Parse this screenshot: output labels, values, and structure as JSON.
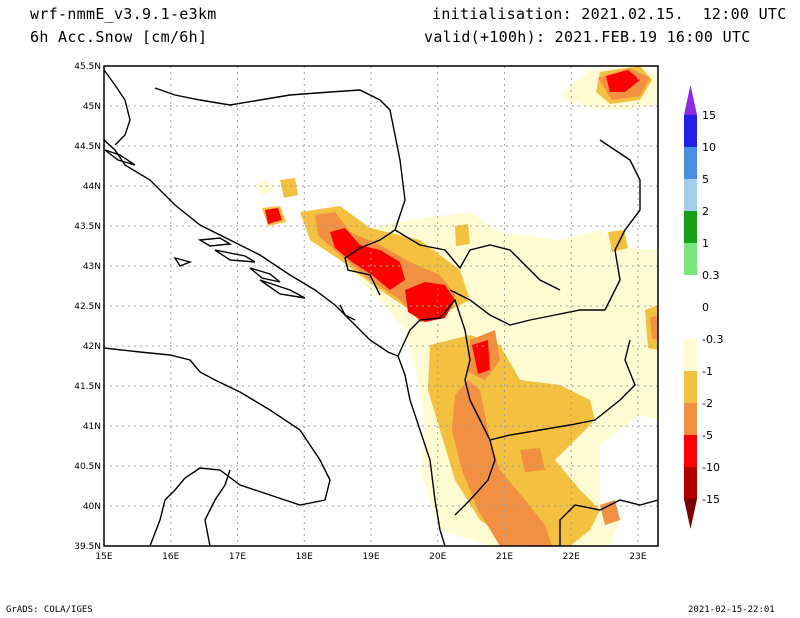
{
  "header": {
    "model": "wrf-nmmE_v3.9.1-e3km",
    "field": "6h Acc.Snow [cm/6h]",
    "init": "initialisation: 2021.02.15.  12:00 UTC",
    "valid": "valid(+100h): 2021.FEB.19 16:00 UTC"
  },
  "axes": {
    "lon_labels": [
      "15E",
      "16E",
      "17E",
      "18E",
      "19E",
      "20E",
      "21E",
      "22E",
      "23E"
    ],
    "lat_labels": [
      "39.5N",
      "40N",
      "40.5N",
      "41N",
      "41.5N",
      "42N",
      "42.5N",
      "43N",
      "43.5N",
      "44N",
      "44.5N",
      "45N",
      "45.5N"
    ],
    "lon_range": [
      15.0,
      23.3
    ],
    "lat_range": [
      39.5,
      45.5
    ]
  },
  "legend": {
    "labels": [
      "15",
      "10",
      "5",
      "2",
      "1",
      "0.3",
      "0",
      "-0.3",
      "-1",
      "-2",
      "-5",
      "-10",
      "-15"
    ],
    "bands": [
      {
        "color": "#2020e6"
      },
      {
        "color": "#4a8fe0"
      },
      {
        "color": "#a5cff2"
      },
      {
        "color": "#16a016"
      },
      {
        "color": "#78e678"
      },
      {
        "color": "#ffffff"
      },
      {
        "color": "#ffffff"
      },
      {
        "color": "#fffbd2"
      },
      {
        "color": "#f4c040"
      },
      {
        "color": "#f09040"
      },
      {
        "color": "#ff0000"
      },
      {
        "color": "#b00000"
      }
    ],
    "top_arrow_color": "#8a2be2",
    "bottom_arrow_color": "#7a0000"
  },
  "field_colors": {
    "very_light": "#fffbd2",
    "light": "#f4c040",
    "moderate": "#f09040",
    "heavy": "#ff0000"
  },
  "footer": {
    "left": "GrADS: COLA/IGES",
    "right": "2021-02-15-22:01"
  }
}
